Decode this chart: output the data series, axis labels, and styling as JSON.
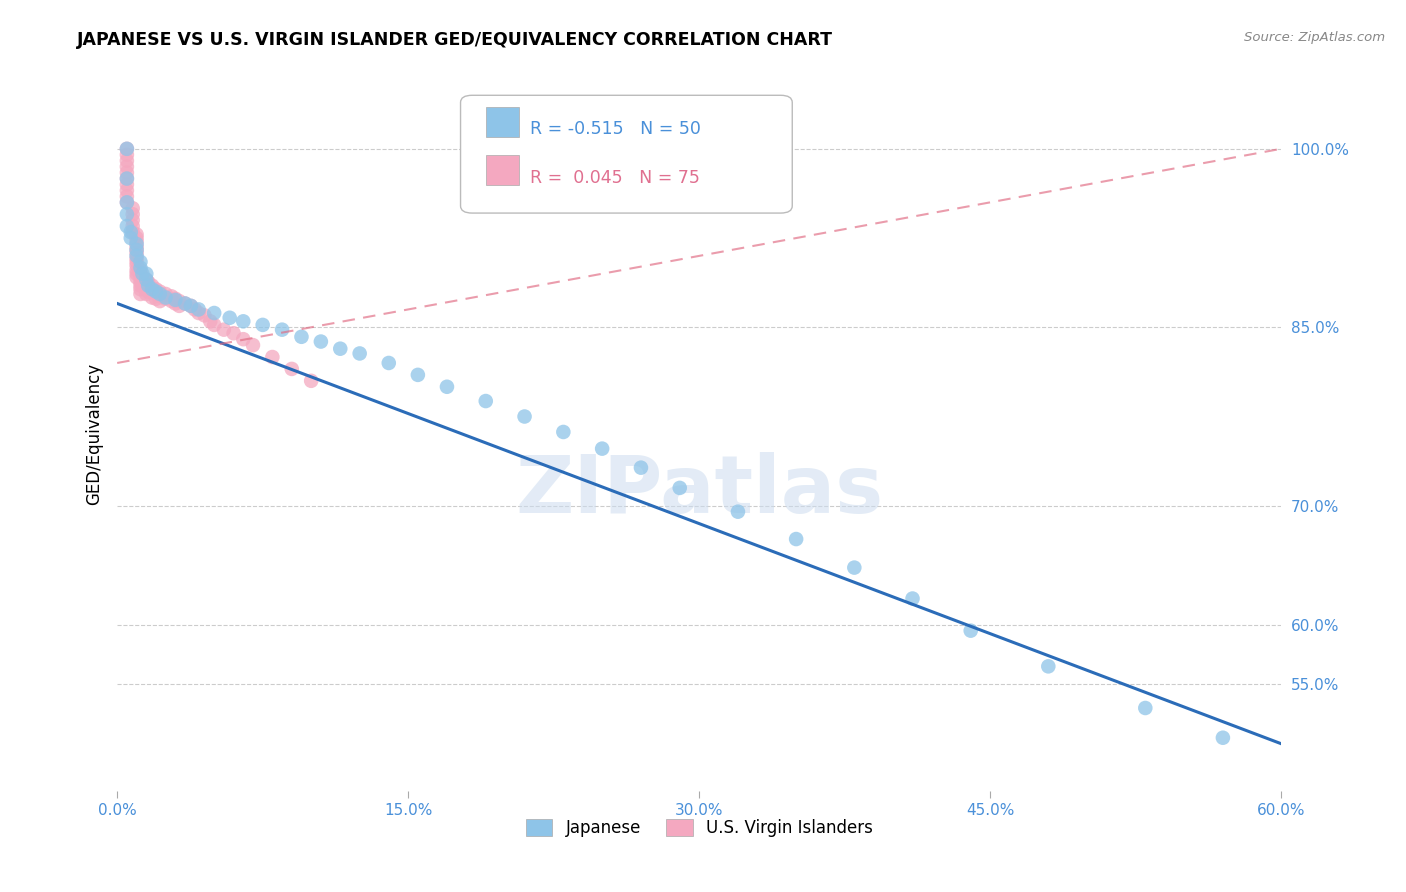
{
  "title": "JAPANESE VS U.S. VIRGIN ISLANDER GED/EQUIVALENCY CORRELATION CHART",
  "source": "Source: ZipAtlas.com",
  "ylabel": "GED/Equivalency",
  "xlim": [
    0.0,
    0.6
  ],
  "ylim": [
    0.46,
    1.06
  ],
  "japanese_R": -0.515,
  "japanese_N": 50,
  "virgin_islander_R": 0.045,
  "virgin_islander_N": 75,
  "blue_color": "#8EC4E8",
  "pink_color": "#F4A8C0",
  "blue_line_color": "#2B6CB8",
  "pink_line_color": "#E06880",
  "watermark_text": "ZIPatlas",
  "legend_label_blue": "Japanese",
  "legend_label_pink": "U.S. Virgin Islanders",
  "ytick_values": [
    0.55,
    0.6,
    0.7,
    0.85,
    1.0
  ],
  "ytick_labels": [
    "55.0%",
    "60.0%",
    "70.0%",
    "85.0%",
    "100.0%"
  ],
  "xtick_values": [
    0.0,
    0.15,
    0.3,
    0.45,
    0.6
  ],
  "xtick_labels": [
    "0.0%",
    "15.0%",
    "30.0%",
    "45.0%",
    "60.0%"
  ],
  "japanese_x": [
    0.005,
    0.005,
    0.005,
    0.005,
    0.005,
    0.007,
    0.007,
    0.01,
    0.01,
    0.01,
    0.012,
    0.012,
    0.013,
    0.015,
    0.015,
    0.016,
    0.018,
    0.02,
    0.022,
    0.025,
    0.03,
    0.035,
    0.038,
    0.042,
    0.05,
    0.058,
    0.065,
    0.075,
    0.085,
    0.095,
    0.105,
    0.115,
    0.125,
    0.14,
    0.155,
    0.17,
    0.19,
    0.21,
    0.23,
    0.25,
    0.27,
    0.29,
    0.32,
    0.35,
    0.38,
    0.41,
    0.44,
    0.48,
    0.53,
    0.57
  ],
  "japanese_y": [
    1.0,
    0.975,
    0.955,
    0.945,
    0.935,
    0.93,
    0.925,
    0.92,
    0.915,
    0.91,
    0.905,
    0.9,
    0.895,
    0.895,
    0.89,
    0.885,
    0.882,
    0.88,
    0.878,
    0.875,
    0.873,
    0.87,
    0.868,
    0.865,
    0.862,
    0.858,
    0.855,
    0.852,
    0.848,
    0.842,
    0.838,
    0.832,
    0.828,
    0.82,
    0.81,
    0.8,
    0.788,
    0.775,
    0.762,
    0.748,
    0.732,
    0.715,
    0.695,
    0.672,
    0.648,
    0.622,
    0.595,
    0.565,
    0.53,
    0.505
  ],
  "virgin_x": [
    0.005,
    0.005,
    0.005,
    0.005,
    0.005,
    0.005,
    0.005,
    0.005,
    0.005,
    0.005,
    0.008,
    0.008,
    0.008,
    0.008,
    0.008,
    0.01,
    0.01,
    0.01,
    0.01,
    0.01,
    0.01,
    0.01,
    0.01,
    0.01,
    0.01,
    0.01,
    0.01,
    0.012,
    0.012,
    0.012,
    0.012,
    0.012,
    0.012,
    0.012,
    0.013,
    0.013,
    0.013,
    0.015,
    0.015,
    0.015,
    0.015,
    0.016,
    0.016,
    0.016,
    0.018,
    0.018,
    0.018,
    0.02,
    0.02,
    0.02,
    0.022,
    0.022,
    0.022,
    0.025,
    0.025,
    0.028,
    0.028,
    0.03,
    0.03,
    0.032,
    0.032,
    0.035,
    0.038,
    0.04,
    0.042,
    0.045,
    0.048,
    0.05,
    0.055,
    0.06,
    0.065,
    0.07,
    0.08,
    0.09,
    0.1
  ],
  "virgin_y": [
    1.0,
    0.995,
    0.99,
    0.985,
    0.98,
    0.975,
    0.97,
    0.965,
    0.96,
    0.955,
    0.95,
    0.945,
    0.94,
    0.935,
    0.93,
    0.928,
    0.925,
    0.922,
    0.918,
    0.915,
    0.912,
    0.908,
    0.905,
    0.902,
    0.898,
    0.895,
    0.892,
    0.898,
    0.895,
    0.892,
    0.888,
    0.885,
    0.882,
    0.878,
    0.892,
    0.888,
    0.885,
    0.89,
    0.886,
    0.882,
    0.878,
    0.888,
    0.884,
    0.88,
    0.885,
    0.88,
    0.875,
    0.882,
    0.878,
    0.874,
    0.88,
    0.876,
    0.872,
    0.878,
    0.874,
    0.876,
    0.872,
    0.874,
    0.87,
    0.872,
    0.868,
    0.87,
    0.868,
    0.865,
    0.862,
    0.86,
    0.855,
    0.852,
    0.848,
    0.845,
    0.84,
    0.835,
    0.825,
    0.815,
    0.805
  ]
}
